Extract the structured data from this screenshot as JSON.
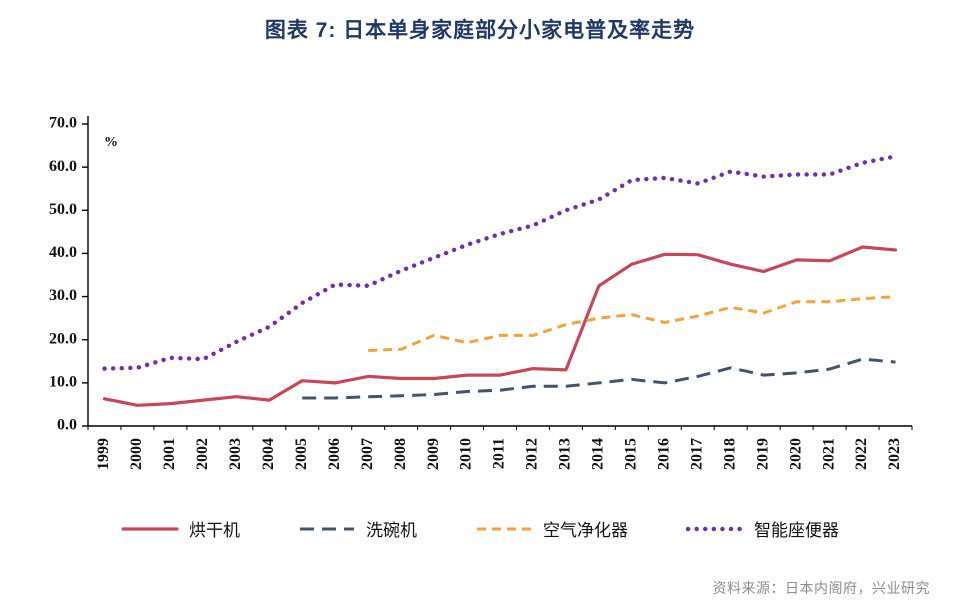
{
  "title": "图表 7: 日本单身家庭部分小家电普及率走势",
  "source": "资料来源：日本内阁府，兴业研究",
  "chart_data": {
    "type": "line",
    "title": "图表 7: 日本单身家庭部分小家电普及率走势",
    "unit_label": "%",
    "grid": false,
    "legend_position": "bottom",
    "ylim": [
      0,
      70
    ],
    "ytick_step": 10,
    "ytick_labels": [
      "0.0",
      "10.0",
      "20.0",
      "30.0",
      "40.0",
      "50.0",
      "60.0",
      "70.0"
    ],
    "x": [
      "1999",
      "2000",
      "2001",
      "2002",
      "2003",
      "2004",
      "2005",
      "2006",
      "2007",
      "2008",
      "2009",
      "2010",
      "2011",
      "2012",
      "2013",
      "2014",
      "2015",
      "2016",
      "2017",
      "2018",
      "2019",
      "2020",
      "2021",
      "2022",
      "2023"
    ],
    "series": [
      {
        "name": "烘干机",
        "color": "#C5485A",
        "style": "solid",
        "values": [
          6.3,
          4.8,
          5.2,
          6.0,
          6.8,
          6.0,
          10.5,
          10.0,
          11.5,
          11.0,
          11.0,
          11.8,
          11.8,
          13.3,
          13.0,
          32.5,
          37.5,
          39.8,
          39.7,
          37.5,
          35.8,
          38.5,
          38.3,
          41.5,
          40.8
        ]
      },
      {
        "name": "洗碗机",
        "color": "#44546A",
        "style": "long-dash",
        "values": [
          null,
          null,
          null,
          null,
          null,
          null,
          6.5,
          6.5,
          6.8,
          7.0,
          7.3,
          8.0,
          8.3,
          9.2,
          9.2,
          10.0,
          10.8,
          10.0,
          11.5,
          13.5,
          11.8,
          12.3,
          13.2,
          15.5,
          14.8
        ]
      },
      {
        "name": "空气净化器",
        "color": "#F0A33E",
        "style": "dash",
        "values": [
          null,
          null,
          null,
          null,
          null,
          null,
          null,
          null,
          17.5,
          17.8,
          21.0,
          19.3,
          21.0,
          21.0,
          23.5,
          25.0,
          25.8,
          24.0,
          25.5,
          27.5,
          26.2,
          28.8,
          28.8,
          29.5,
          30.0
        ]
      },
      {
        "name": "智能座便器",
        "color": "#7030A0",
        "style": "dot",
        "values": [
          13.3,
          13.5,
          15.8,
          15.5,
          19.5,
          23.0,
          28.5,
          32.8,
          32.5,
          36.0,
          39.0,
          42.0,
          44.5,
          46.5,
          50.0,
          52.5,
          57.0,
          57.5,
          56.2,
          59.0,
          57.8,
          58.3,
          58.3,
          61.0,
          62.5
        ]
      }
    ]
  }
}
